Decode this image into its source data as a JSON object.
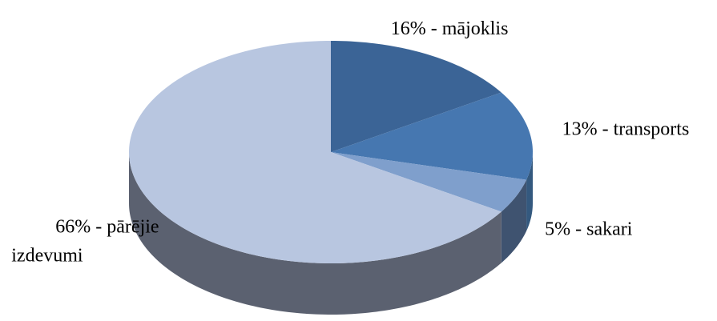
{
  "chart_data": {
    "type": "pie",
    "values": [
      16,
      13,
      5,
      66
    ],
    "value_labels": [
      "16% - mājoklis",
      "13% - transports",
      "5% - sakari",
      "66% - pārējie izdevumi"
    ],
    "colors": [
      "#3b6496",
      "#4677b0",
      "#7f9fcc",
      "#b8c6e0"
    ],
    "side_colors": [
      "#2c4a70",
      "#34597f",
      "#3f5370",
      "#5b6170"
    ]
  }
}
